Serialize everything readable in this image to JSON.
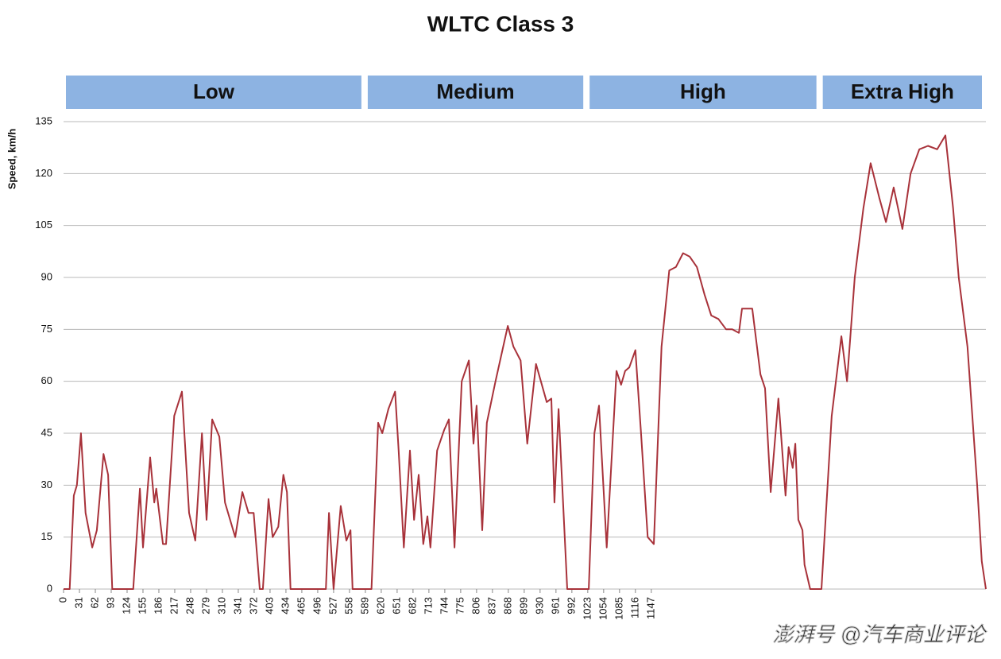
{
  "chart_data": {
    "type": "line",
    "title": "WLTC Class 3",
    "y_label": "Speed, km/h",
    "watermark": "澎湃号 @汽车商业评论",
    "color": "#a8323a",
    "phase_color": "#8db3e2",
    "grid": true,
    "phases": [
      {
        "name": "Low",
        "start": 0,
        "end": 589
      },
      {
        "name": "Medium",
        "start": 589,
        "end": 1022
      },
      {
        "name": "High",
        "start": 1022,
        "end": 1477
      },
      {
        "name": "Extra High",
        "start": 1477,
        "end": 1800
      }
    ],
    "xlim": [
      0,
      1800
    ],
    "ylim": [
      0,
      135
    ],
    "yticks": [
      0,
      15,
      30,
      45,
      60,
      75,
      90,
      105,
      120,
      135
    ],
    "xticks": [
      0,
      31,
      62,
      93,
      124,
      155,
      186,
      217,
      248,
      279,
      310,
      341,
      372,
      403,
      434,
      465,
      496,
      527,
      558,
      589,
      620,
      651,
      682,
      713,
      744,
      775,
      806,
      837,
      868,
      899,
      930,
      961,
      992,
      1023,
      1054,
      1085,
      1116,
      1147
    ],
    "x": [
      0,
      12,
      20,
      26,
      34,
      43,
      56,
      65,
      78,
      87,
      95,
      136,
      149,
      155,
      169,
      177,
      181,
      194,
      200,
      216,
      231,
      245,
      257,
      270,
      279,
      290,
      304,
      315,
      335,
      349,
      361,
      371,
      383,
      389,
      400,
      408,
      419,
      429,
      436,
      443,
      512,
      518,
      527,
      541,
      552,
      560,
      564,
      601,
      614,
      622,
      634,
      647,
      654,
      664,
      676,
      684,
      693,
      702,
      710,
      716,
      729,
      743,
      752,
      763,
      777,
      791,
      800,
      806,
      817,
      826,
      843,
      867,
      878,
      892,
      905,
      922,
      943,
      952,
      958,
      966,
      983,
      1025,
      1036,
      1045,
      1060,
      1079,
      1088,
      1096,
      1104,
      1116,
      1127,
      1140,
      1152,
      1167,
      1182,
      1195,
      1209,
      1222,
      1236,
      1251,
      1264,
      1278,
      1293,
      1305,
      1318,
      1324,
      1344,
      1360,
      1369,
      1380,
      1395,
      1409,
      1415,
      1423,
      1428,
      1434,
      1442,
      1446,
      1457,
      1479,
      1499,
      1518,
      1529,
      1544,
      1561,
      1575,
      1592,
      1605,
      1620,
      1637,
      1653,
      1670,
      1687,
      1705,
      1721,
      1736,
      1747,
      1764,
      1783,
      1792,
      1800
    ],
    "values": [
      0,
      0,
      27,
      30,
      45,
      22,
      12,
      17,
      39,
      33,
      0,
      0,
      29,
      12,
      38,
      25,
      29,
      13,
      13,
      50,
      57,
      22,
      14,
      45,
      20,
      49,
      44,
      25,
      15,
      28,
      22,
      22,
      0,
      0,
      26,
      15,
      18,
      33,
      28,
      0,
      0,
      22,
      0,
      24,
      14,
      17,
      0,
      0,
      48,
      45,
      52,
      57,
      40,
      12,
      40,
      20,
      33,
      13,
      21,
      12,
      40,
      46,
      49,
      12,
      60,
      66,
      42,
      53,
      17,
      48,
      60,
      76,
      70,
      66,
      42,
      65,
      54,
      55,
      25,
      52,
      0,
      0,
      45,
      53,
      12,
      63,
      59,
      63,
      64,
      69,
      45,
      15,
      13,
      70,
      92,
      93,
      97,
      96,
      93,
      85,
      79,
      78,
      75,
      75,
      74,
      81,
      81,
      62,
      58,
      28,
      55,
      27,
      41,
      35,
      42,
      20,
      17,
      7,
      0,
      0,
      50,
      73,
      60,
      90,
      110,
      123,
      113,
      106,
      116,
      104,
      120,
      127,
      128,
      127,
      131,
      110,
      90,
      70,
      30,
      8,
      0
    ]
  }
}
